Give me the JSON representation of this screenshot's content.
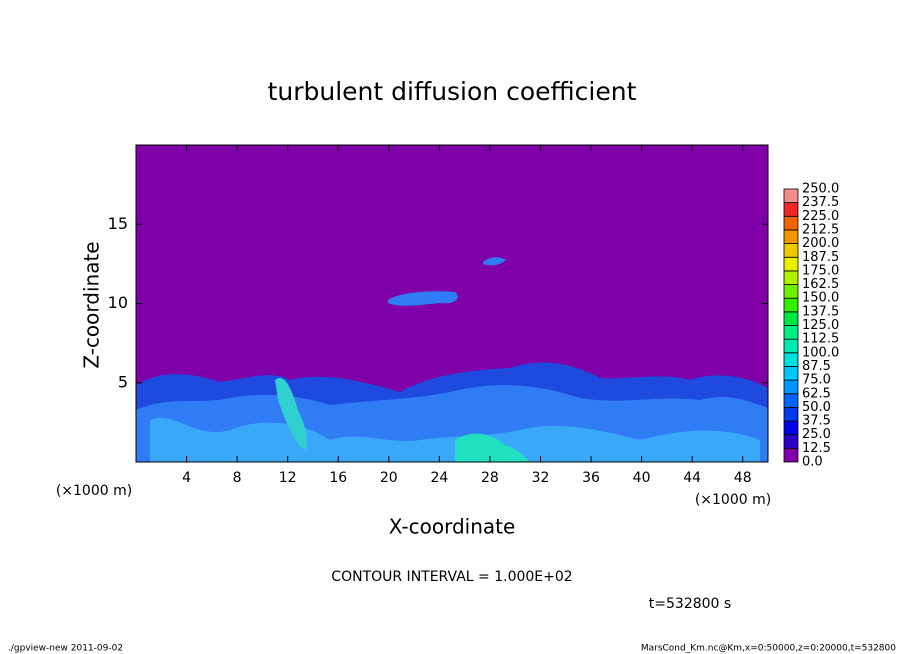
{
  "chart_data": {
    "type": "heatmap",
    "title": "turbulent diffusion coefficient",
    "x_label": "X-coordinate",
    "y_label": "Z-coordinate",
    "x_unit": "(×1000 m)",
    "x_unit_right": "(×1000 m)",
    "xlim": [
      0,
      50
    ],
    "xticks": [
      4,
      8,
      12,
      16,
      20,
      24,
      28,
      32,
      36,
      40,
      44,
      48
    ],
    "ylim": [
      0,
      20
    ],
    "yticks": [
      5,
      10,
      15
    ],
    "colorbar": {
      "levels": [
        {
          "value": 0,
          "label": "0.0"
        },
        12.5,
        {
          "value": 25,
          "label": "25.0"
        },
        37.5,
        {
          "value": 50,
          "label": "50.0"
        },
        62.5,
        {
          "value": 75,
          "label": "75.0"
        },
        87.5,
        {
          "value": 100,
          "label": "100.0"
        },
        112.5,
        {
          "value": 125,
          "label": "125.0"
        },
        137.5,
        {
          "value": 150,
          "label": "150.0"
        },
        162.5,
        {
          "value": 175,
          "label": "175.0"
        },
        187.5,
        {
          "value": 200,
          "label": "200.0"
        },
        212.5,
        {
          "value": 225,
          "label": "225.0"
        },
        237.5,
        {
          "value": 250,
          "label": "250.0"
        }
      ],
      "colors": [
        "#7f00a8",
        "#2a00c8",
        "#0000e6",
        "#0038f0",
        "#0064ff",
        "#0096ff",
        "#00c8ff",
        "#00e0e0",
        "#00e8b0",
        "#00f080",
        "#00e840",
        "#30f000",
        "#70f000",
        "#b0f000",
        "#e8f000",
        "#f0c800",
        "#f09600",
        "#f06400",
        "#f02828",
        "#f08c8c"
      ]
    },
    "contour_interval": "CONTOUR INTERVAL = 1.000E+02",
    "time_label": "t=532800 s",
    "footer_left": "./gpview-new  2011-09-02",
    "footer_right": "MarsCond_Km.nc@Km,x=0:50000,z=0:20000,t=532800"
  }
}
